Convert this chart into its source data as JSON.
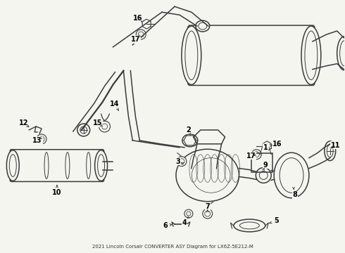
{
  "title": "2021 Lincoln Corsair CONVERTER ASY Diagram for LX6Z-5E212-M",
  "bg_color": "#f5f5f0",
  "line_color": "#3a3a3a",
  "label_color": "#000000",
  "fig_width": 4.9,
  "fig_height": 3.6,
  "dpi": 100,
  "label_fs": 7.0,
  "lw": 1.1
}
